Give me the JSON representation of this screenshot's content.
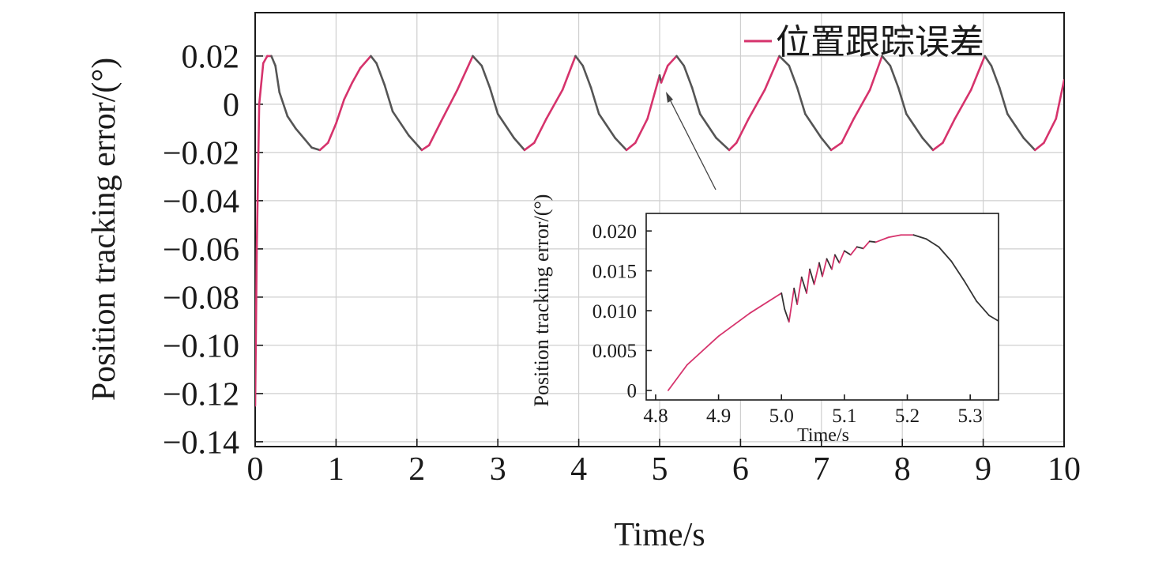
{
  "chart_data": [
    {
      "type": "line",
      "xlabel": "Time/s",
      "ylabel": "Position tracking error/(°)",
      "xlim": [
        0,
        10
      ],
      "ylim": [
        -0.142,
        0.038
      ],
      "xticks": [
        0,
        1,
        2,
        3,
        4,
        5,
        6,
        7,
        8,
        9,
        10
      ],
      "xtick_labels": [
        "0",
        "1",
        "2",
        "3",
        "4",
        "5",
        "6",
        "7",
        "8",
        "9",
        "10"
      ],
      "yticks": [
        0.02,
        0,
        -0.02,
        -0.04,
        -0.06,
        -0.08,
        -0.1,
        -0.12,
        -0.14
      ],
      "ytick_labels": [
        "0.02",
        "0",
        "−0.02",
        "−0.04",
        "−0.06",
        "−0.08",
        "−0.10",
        "−0.12",
        "−0.14"
      ],
      "grid": true,
      "legend_position": "top-right",
      "series": [
        {
          "name": "位置跟踪误差",
          "color": "#d6336c",
          "secondary_color": "#555555",
          "x": [
            0,
            0.02,
            0.05,
            0.1,
            0.15,
            0.2,
            0.25,
            0.3,
            0.4,
            0.5,
            0.6,
            0.7,
            0.8,
            0.9,
            1.0,
            1.1,
            1.2,
            1.3,
            1.43,
            1.5,
            1.6,
            1.7,
            1.8,
            1.9,
            2.06,
            2.15,
            2.3,
            2.5,
            2.69,
            2.8,
            2.9,
            3.0,
            3.1,
            3.2,
            3.33,
            3.45,
            3.6,
            3.8,
            3.96,
            4.05,
            4.15,
            4.25,
            4.35,
            4.45,
            4.59,
            4.7,
            4.85,
            5.0,
            5.02,
            5.1,
            5.21,
            5.3,
            5.4,
            5.5,
            5.6,
            5.7,
            5.86,
            5.95,
            6.1,
            6.3,
            6.48,
            6.6,
            6.7,
            6.8,
            6.9,
            7.0,
            7.12,
            7.25,
            7.4,
            7.6,
            7.75,
            7.85,
            7.95,
            8.05,
            8.15,
            8.25,
            8.38,
            8.5,
            8.65,
            8.85,
            9.02,
            9.1,
            9.2,
            9.3,
            9.4,
            9.5,
            9.64,
            9.75,
            9.9,
            10.0
          ],
          "y": [
            -0.125,
            -0.06,
            0.0,
            0.017,
            0.02,
            0.02,
            0.016,
            0.005,
            -0.005,
            -0.01,
            -0.014,
            -0.018,
            -0.019,
            -0.016,
            -0.008,
            0.002,
            0.009,
            0.015,
            0.02,
            0.017,
            0.008,
            -0.003,
            -0.008,
            -0.013,
            -0.019,
            -0.017,
            -0.007,
            0.006,
            0.02,
            0.016,
            0.007,
            -0.004,
            -0.009,
            -0.014,
            -0.019,
            -0.016,
            -0.006,
            0.006,
            0.02,
            0.016,
            0.007,
            -0.004,
            -0.009,
            -0.014,
            -0.019,
            -0.016,
            -0.006,
            0.012,
            0.009,
            0.016,
            0.02,
            0.016,
            0.007,
            -0.004,
            -0.009,
            -0.014,
            -0.019,
            -0.016,
            -0.006,
            0.006,
            0.02,
            0.016,
            0.007,
            -0.004,
            -0.009,
            -0.014,
            -0.019,
            -0.016,
            -0.006,
            0.006,
            0.02,
            0.016,
            0.007,
            -0.004,
            -0.009,
            -0.014,
            -0.019,
            -0.016,
            -0.006,
            0.006,
            0.02,
            0.016,
            0.007,
            -0.004,
            -0.009,
            -0.014,
            -0.019,
            -0.016,
            -0.006,
            0.01
          ]
        }
      ]
    },
    {
      "type": "line",
      "xlabel": "Time/s",
      "ylabel": "Position tracking error/(°)",
      "xlim": [
        4.785,
        5.345
      ],
      "ylim": [
        -0.0012,
        0.0222
      ],
      "xticks": [
        4.8,
        4.9,
        5.0,
        5.1,
        5.2,
        5.3
      ],
      "xtick_labels": [
        "4.8",
        "4.9",
        "5.0",
        "5.1",
        "5.2",
        "5.3"
      ],
      "yticks": [
        0,
        0.005,
        0.01,
        0.015,
        0.02
      ],
      "ytick_labels": [
        "0",
        "0.005",
        "0.010",
        "0.015",
        "0.020"
      ],
      "grid": false,
      "series": [
        {
          "name": "",
          "color": "#d6336c",
          "secondary_color": "#333333",
          "x": [
            4.82,
            4.85,
            4.9,
            4.95,
            5.0,
            5.005,
            5.012,
            5.02,
            5.025,
            5.032,
            5.04,
            5.045,
            5.052,
            5.06,
            5.065,
            5.072,
            5.08,
            5.085,
            5.092,
            5.1,
            5.11,
            5.12,
            5.13,
            5.14,
            5.15,
            5.17,
            5.19,
            5.21,
            5.23,
            5.25,
            5.27,
            5.29,
            5.31,
            5.33,
            5.345
          ],
          "y": [
            0.0,
            0.0032,
            0.0068,
            0.0097,
            0.0122,
            0.0102,
            0.0086,
            0.0128,
            0.0108,
            0.0142,
            0.0122,
            0.0152,
            0.0133,
            0.016,
            0.0143,
            0.0165,
            0.0152,
            0.017,
            0.016,
            0.0175,
            0.017,
            0.018,
            0.0178,
            0.0187,
            0.0186,
            0.0192,
            0.0195,
            0.0195,
            0.019,
            0.018,
            0.0162,
            0.0138,
            0.0112,
            0.0094,
            0.0087
          ]
        }
      ]
    }
  ]
}
